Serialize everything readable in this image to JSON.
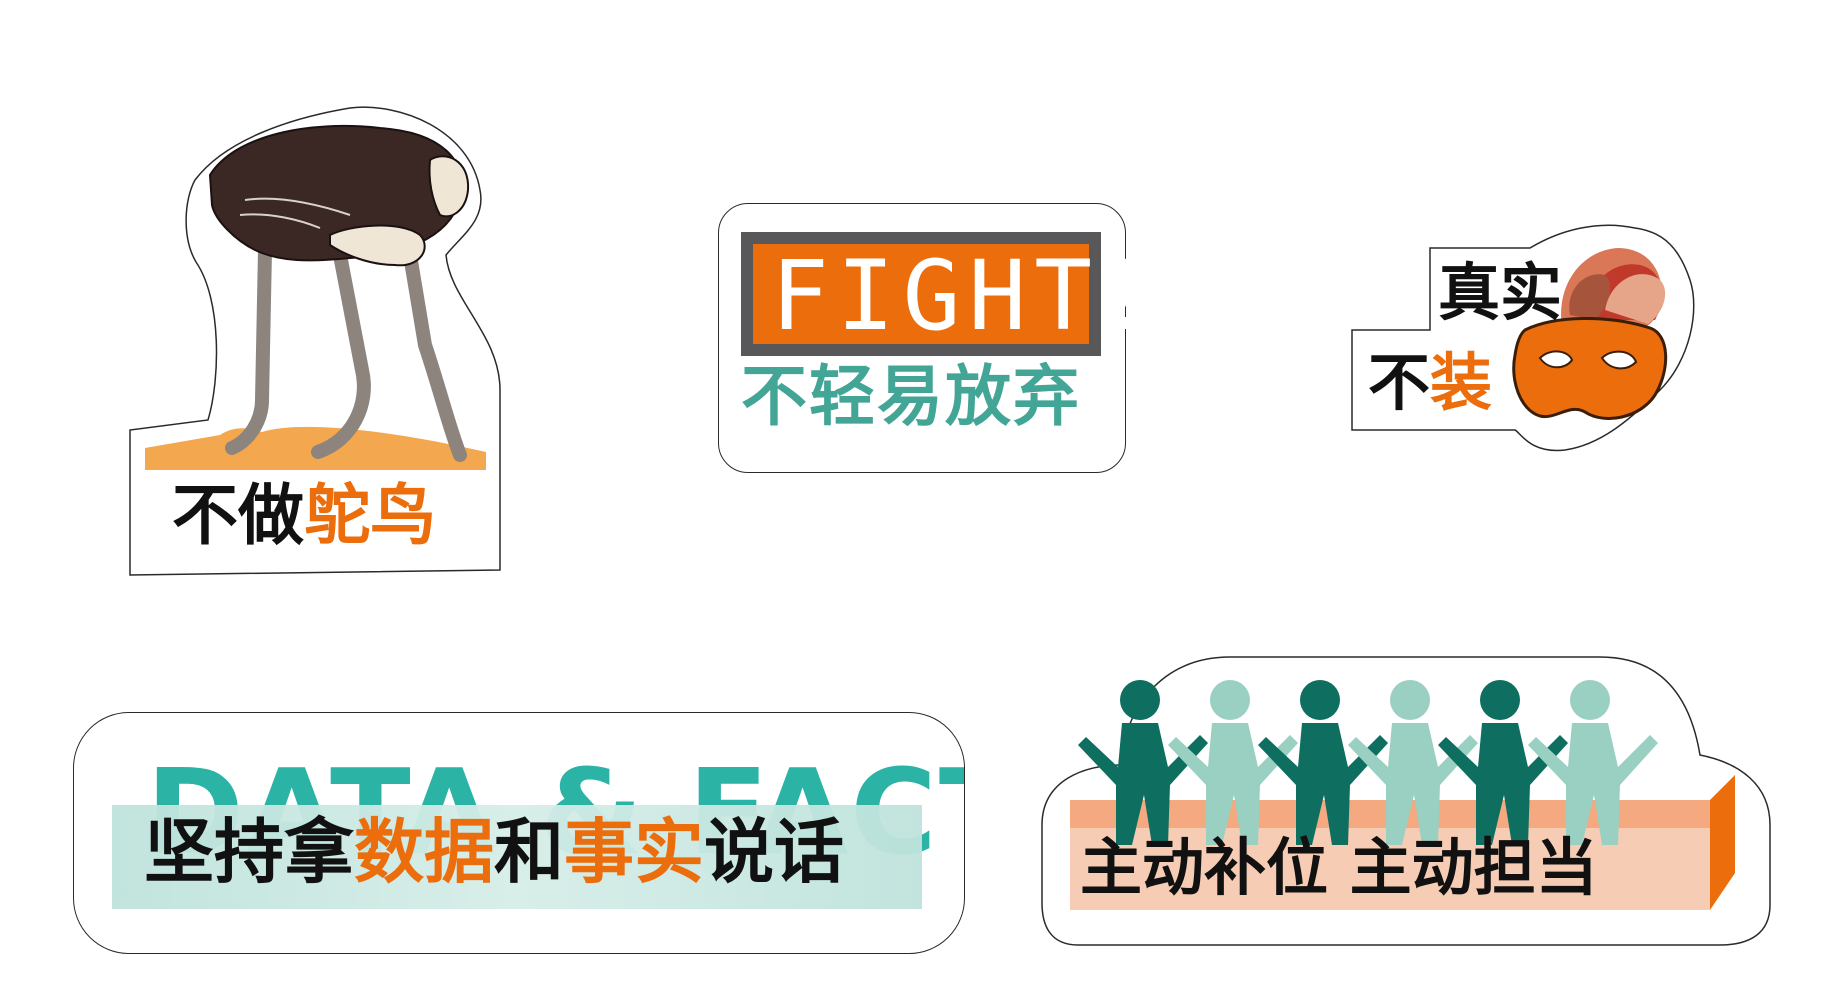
{
  "colors": {
    "orange": "#ec6d0c",
    "teal": "#43a596",
    "dark_teal": "#0e6e60",
    "light_teal": "#9ad0c2",
    "black": "#111111",
    "gray_frame": "#58575a",
    "sand": "#f3a74f",
    "peach": "#f4a981",
    "pale_peach": "#f6cdb4"
  },
  "sticker_ostrich": {
    "icon": "ostrich-icon",
    "text_black": "不做",
    "text_orange": "鸵鸟"
  },
  "sticker_fight": {
    "headline": "FIGHT!",
    "subtitle": "不轻易放弃"
  },
  "sticker_mask": {
    "icon": "carnival-mask-icon",
    "line1": "真实",
    "line2_black": "不",
    "line2_orange": "装"
  },
  "sticker_data": {
    "background_text": "DATA & FACT",
    "seg1": "坚持拿",
    "seg2": "数据",
    "seg3": "和",
    "seg4": "事实",
    "seg5": "说话"
  },
  "sticker_team": {
    "icon": "people-chain-icon",
    "text": "主动补位 主动担当"
  }
}
